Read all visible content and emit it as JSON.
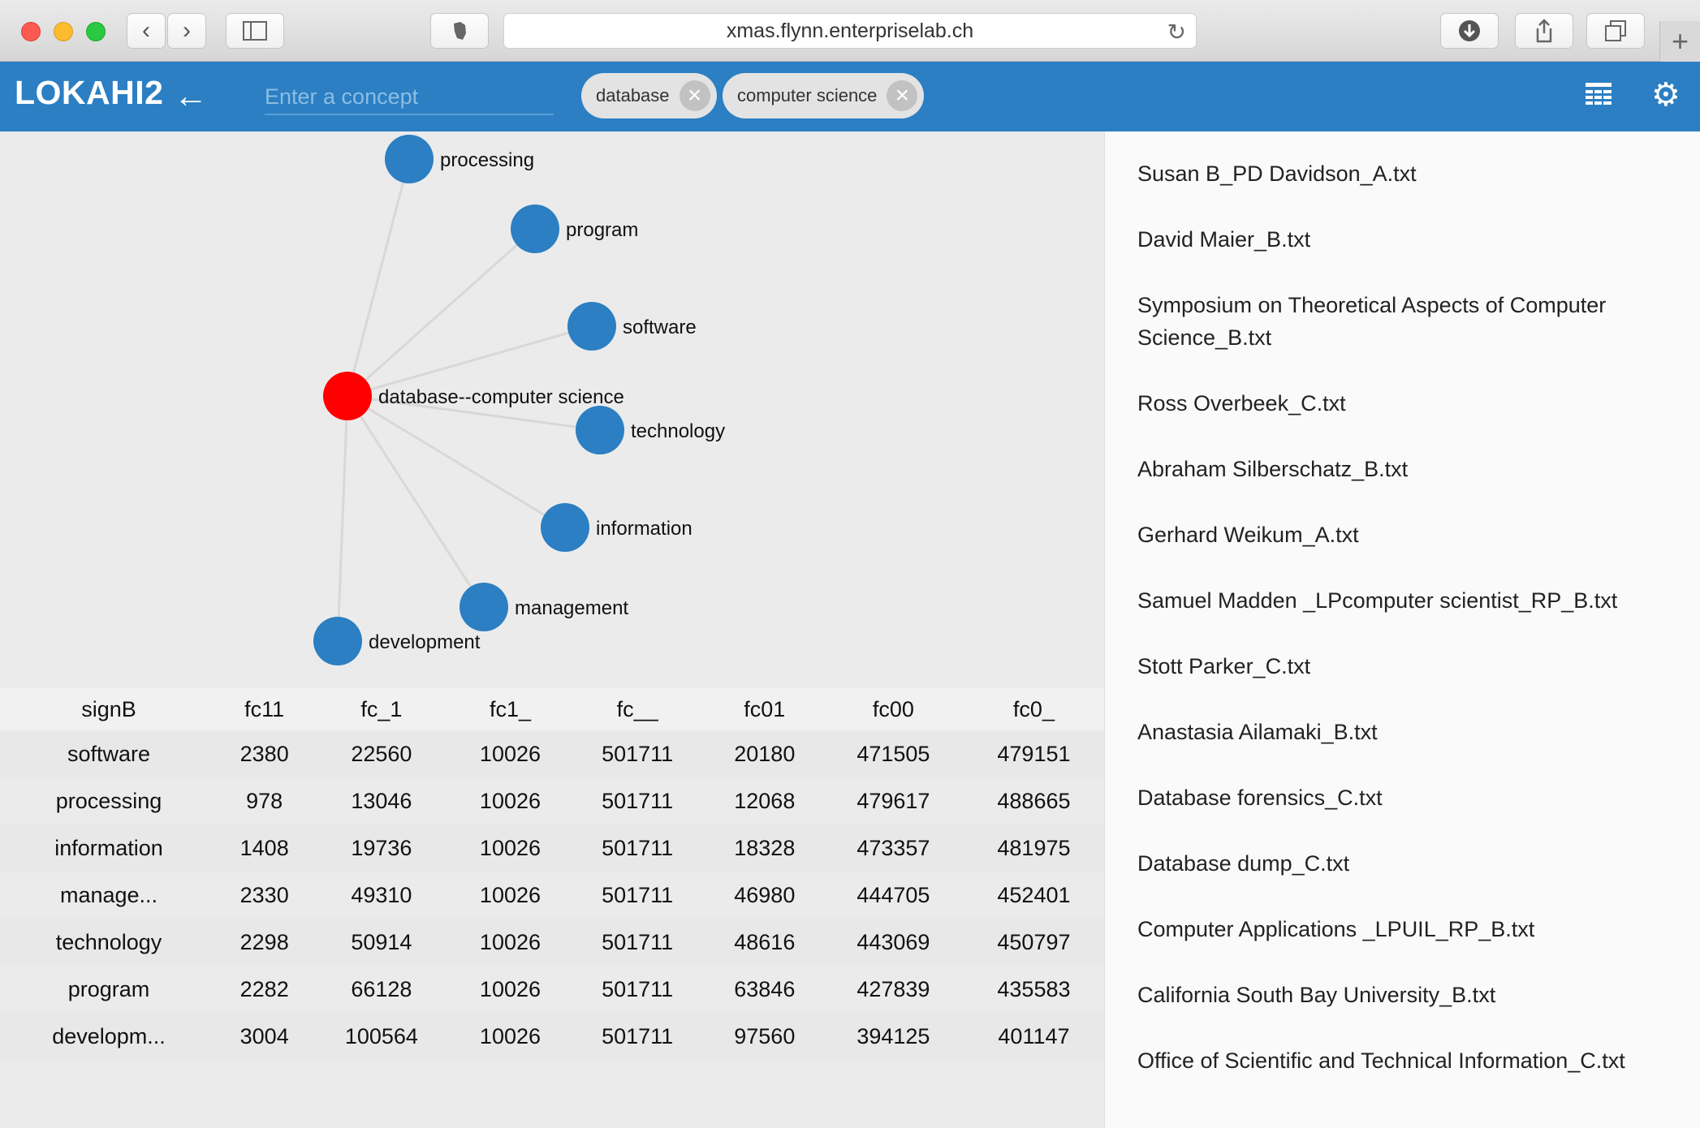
{
  "browser": {
    "url": "xmas.flynn.enterpriselab.ch"
  },
  "app": {
    "logo": "LOKAHI2",
    "search_placeholder": "Enter a concept",
    "chips": [
      {
        "label": "database"
      },
      {
        "label": "computer science"
      }
    ]
  },
  "graph": {
    "center": {
      "label": "database--computer science",
      "color": "#ff0000"
    },
    "node_color": "#2b7fc2",
    "nodes": [
      {
        "label": "processing"
      },
      {
        "label": "program"
      },
      {
        "label": "software"
      },
      {
        "label": "technology"
      },
      {
        "label": "information"
      },
      {
        "label": "management"
      },
      {
        "label": "development"
      }
    ]
  },
  "table": {
    "headers": [
      "signB",
      "fc11",
      "fc_1",
      "fc1_",
      "fc__",
      "fc01",
      "fc00",
      "fc0_"
    ],
    "rows": [
      [
        "software",
        "2380",
        "22560",
        "10026",
        "501711",
        "20180",
        "471505",
        "479151"
      ],
      [
        "processing",
        "978",
        "13046",
        "10026",
        "501711",
        "12068",
        "479617",
        "488665"
      ],
      [
        "information",
        "1408",
        "19736",
        "10026",
        "501711",
        "18328",
        "473357",
        "481975"
      ],
      [
        "manage...",
        "2330",
        "49310",
        "10026",
        "501711",
        "46980",
        "444705",
        "452401"
      ],
      [
        "technology",
        "2298",
        "50914",
        "10026",
        "501711",
        "48616",
        "443069",
        "450797"
      ],
      [
        "program",
        "2282",
        "66128",
        "10026",
        "501711",
        "63846",
        "427839",
        "435583"
      ],
      [
        "developm...",
        "3004",
        "100564",
        "10026",
        "501711",
        "97560",
        "394125",
        "401147"
      ]
    ]
  },
  "documents": [
    "Susan B_PD Davidson_A.txt",
    "David Maier_B.txt",
    "Symposium on Theoretical Aspects of Computer Science_B.txt",
    "Ross Overbeek_C.txt",
    "Abraham Silberschatz_B.txt",
    "Gerhard Weikum_A.txt",
    "Samuel Madden _LPcomputer scientist_RP_B.txt",
    "Stott Parker_C.txt",
    "Anastasia Ailamaki_B.txt",
    "Database forensics_C.txt",
    "Database dump_C.txt",
    "Computer Applications _LPUIL_RP_B.txt",
    "California South Bay University_B.txt",
    "Office of Scientific and Technical Information_C.txt"
  ]
}
